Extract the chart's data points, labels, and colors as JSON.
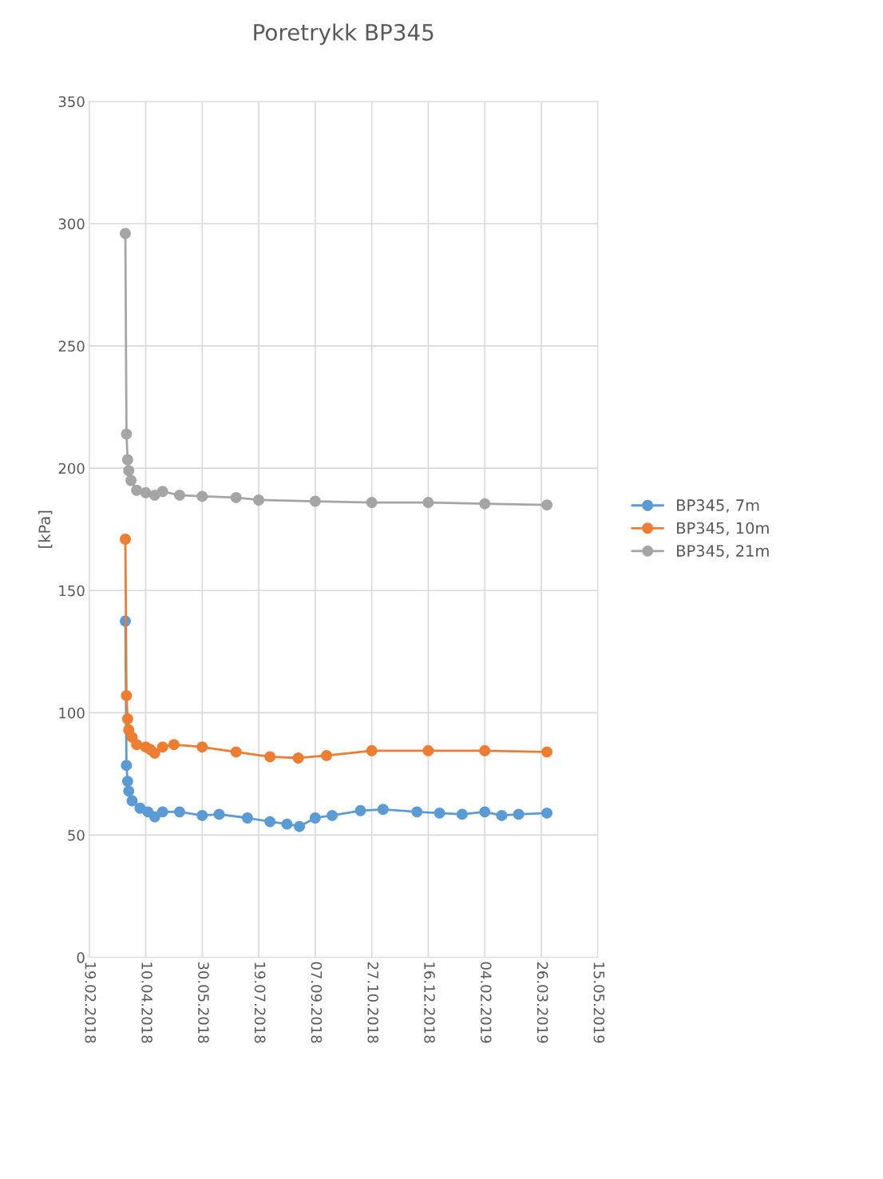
{
  "chart_data": {
    "type": "line",
    "title": "Poretrykk BP345",
    "ylabel": "[kPa]",
    "xlim": [
      "2018-02-19",
      "2019-05-15"
    ],
    "xticks": [
      {
        "value": "2018-02-19",
        "label": "19.02.2018"
      },
      {
        "value": "2018-04-10",
        "label": "10.04.2018"
      },
      {
        "value": "2018-05-30",
        "label": "30.05.2018"
      },
      {
        "value": "2018-07-19",
        "label": "19.07.2018"
      },
      {
        "value": "2018-09-07",
        "label": "07.09.2018"
      },
      {
        "value": "2018-10-27",
        "label": "27.10.2018"
      },
      {
        "value": "2018-12-16",
        "label": "16.12.2018"
      },
      {
        "value": "2019-02-04",
        "label": "04.02.2019"
      },
      {
        "value": "2019-03-26",
        "label": "26.03.2019"
      },
      {
        "value": "2019-05-15",
        "label": "15.05.2019"
      }
    ],
    "ylim": [
      0,
      350
    ],
    "yticks": [
      0,
      50,
      100,
      150,
      200,
      250,
      300,
      350
    ],
    "grid": true,
    "legend": "right",
    "marker": "circle",
    "line_style": "solid",
    "series": [
      {
        "name": "BP345, 7m",
        "color": "#5b9bd5",
        "x": [
          "2018-03-23",
          "2018-03-24",
          "2018-03-25",
          "2018-03-26",
          "2018-03-29",
          "2018-04-05",
          "2018-04-12",
          "2018-04-18",
          "2018-04-25",
          "2018-05-10",
          "2018-05-30",
          "2018-06-14",
          "2018-07-09",
          "2018-07-29",
          "2018-08-13",
          "2018-08-24",
          "2018-09-07",
          "2018-09-22",
          "2018-10-17",
          "2018-11-06",
          "2018-12-06",
          "2018-12-26",
          "2019-01-15",
          "2019-02-04",
          "2019-02-19",
          "2019-03-06",
          "2019-03-31"
        ],
        "values": [
          137.5,
          78.5,
          72,
          68,
          64,
          61,
          59.5,
          57.5,
          59.5,
          59.5,
          58,
          58.5,
          57,
          55.5,
          54.5,
          53.5,
          57,
          58,
          60,
          60.5,
          59.5,
          59,
          58.5,
          59.5,
          58,
          58.5,
          59
        ]
      },
      {
        "name": "BP345, 10m",
        "color": "#ed7d31",
        "x": [
          "2018-03-23",
          "2018-03-24",
          "2018-03-25",
          "2018-03-26",
          "2018-03-29",
          "2018-04-02",
          "2018-04-10",
          "2018-04-14",
          "2018-04-18",
          "2018-04-25",
          "2018-05-05",
          "2018-05-30",
          "2018-06-29",
          "2018-07-29",
          "2018-08-23",
          "2018-09-17",
          "2018-10-27",
          "2018-12-16",
          "2019-02-04",
          "2019-03-31"
        ],
        "values": [
          171,
          107,
          97.5,
          93,
          90,
          87,
          86,
          85,
          83.5,
          86,
          87,
          86,
          84,
          82,
          81.5,
          82.5,
          84.5,
          84.5,
          84.5,
          84
        ]
      },
      {
        "name": "BP345, 21m",
        "color": "#a5a5a5",
        "x": [
          "2018-03-23",
          "2018-03-24",
          "2018-03-25",
          "2018-03-26",
          "2018-03-28",
          "2018-04-02",
          "2018-04-10",
          "2018-04-18",
          "2018-04-25",
          "2018-05-10",
          "2018-05-30",
          "2018-06-29",
          "2018-07-19",
          "2018-09-07",
          "2018-10-27",
          "2018-12-16",
          "2019-02-04",
          "2019-03-31"
        ],
        "values": [
          296,
          214,
          203.5,
          199,
          195,
          191,
          190,
          189,
          190.5,
          189,
          188.5,
          188,
          187,
          186.5,
          186,
          186,
          185.5,
          185
        ]
      }
    ]
  }
}
